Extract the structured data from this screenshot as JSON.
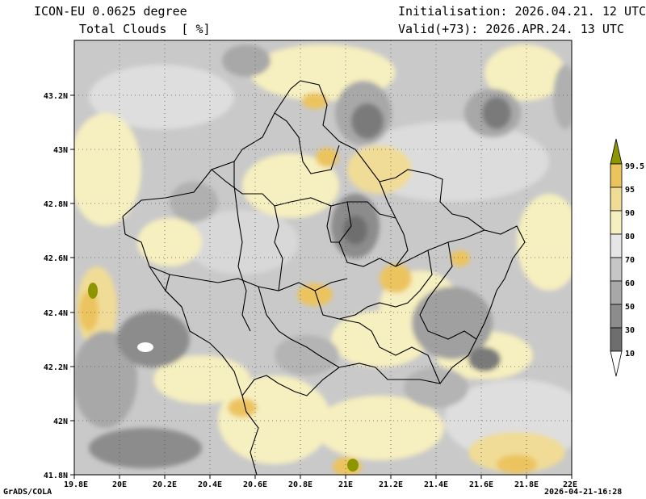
{
  "header": {
    "title": "ICON-EU 0.0625 degree",
    "variable": "Total Clouds  [ %]",
    "initialisation": "Initialisation: 2026.04.21. 12 UTC",
    "valid": "Valid(+73): 2026.APR.24. 13 UTC"
  },
  "footer": {
    "left": "GrADS/COLA",
    "right": "2026-04-21-16:28"
  },
  "map": {
    "lat_labels": [
      "43.2N",
      "43N",
      "42.8N",
      "42.6N",
      "42.4N",
      "42.2N",
      "42N",
      "41.8N"
    ],
    "lon_labels": [
      "19.8E",
      "20E",
      "20.2E",
      "20.4E",
      "20.6E",
      "20.8E",
      "21E",
      "21.2E",
      "21.4E",
      "21.6E",
      "21.8E",
      "22E"
    ]
  },
  "colorbar": {
    "levels": [
      "10",
      "30",
      "50",
      "60",
      "70",
      "80",
      "90",
      "95",
      "99.5"
    ],
    "colors": [
      "#ffffff",
      "#6e6e6e",
      "#8c8c8c",
      "#a8a8a8",
      "#c6c6c6",
      "#e6e6e6",
      "#f6efbf",
      "#f0dc96",
      "#ecc45e",
      "#e6aa1e",
      "#8c9600"
    ]
  }
}
